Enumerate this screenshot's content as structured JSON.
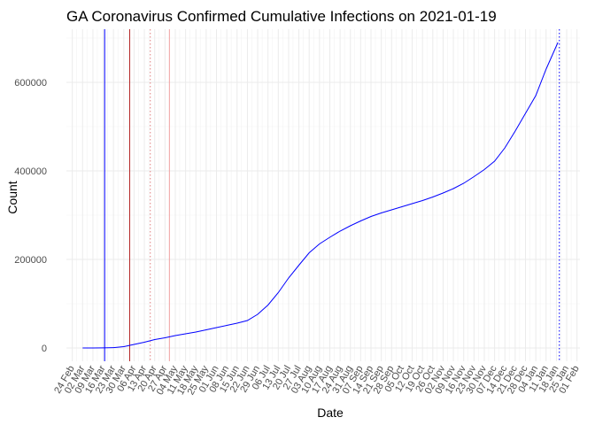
{
  "chart_data": {
    "type": "line",
    "title": "GA Coronavirus Confirmed Cumulative Infections on 2021-01-19",
    "xlabel": "Date",
    "ylabel": "Count",
    "xlim": [
      "2020-02-20",
      "2021-02-03"
    ],
    "ylim": [
      -30000,
      720000
    ],
    "grid": true,
    "y_ticks": [
      {
        "value": 0,
        "label": "0"
      },
      {
        "value": 200000,
        "label": "200000"
      },
      {
        "value": 400000,
        "label": "400000"
      },
      {
        "value": 600000,
        "label": "600000"
      }
    ],
    "x_ticks": [
      {
        "date": "2020-02-24",
        "label": "24 Feb"
      },
      {
        "date": "2020-03-02",
        "label": "02 Mar"
      },
      {
        "date": "2020-03-09",
        "label": "09 Mar"
      },
      {
        "date": "2020-03-16",
        "label": "16 Mar"
      },
      {
        "date": "2020-03-23",
        "label": "23 Mar"
      },
      {
        "date": "2020-03-30",
        "label": "30 Mar"
      },
      {
        "date": "2020-04-06",
        "label": "06 Apr"
      },
      {
        "date": "2020-04-13",
        "label": "13 Apr"
      },
      {
        "date": "2020-04-20",
        "label": "20 Apr"
      },
      {
        "date": "2020-04-27",
        "label": "27 Apr"
      },
      {
        "date": "2020-05-04",
        "label": "04 May"
      },
      {
        "date": "2020-05-11",
        "label": "11 May"
      },
      {
        "date": "2020-05-18",
        "label": "18 May"
      },
      {
        "date": "2020-05-25",
        "label": "25 May"
      },
      {
        "date": "2020-06-01",
        "label": "01 Jun"
      },
      {
        "date": "2020-06-08",
        "label": "08 Jun"
      },
      {
        "date": "2020-06-15",
        "label": "15 Jun"
      },
      {
        "date": "2020-06-22",
        "label": "22 Jun"
      },
      {
        "date": "2020-06-29",
        "label": "29 Jun"
      },
      {
        "date": "2020-07-06",
        "label": "06 Jul"
      },
      {
        "date": "2020-07-13",
        "label": "13 Jul"
      },
      {
        "date": "2020-07-20",
        "label": "20 Jul"
      },
      {
        "date": "2020-07-27",
        "label": "27 Jul"
      },
      {
        "date": "2020-08-03",
        "label": "03 Aug"
      },
      {
        "date": "2020-08-10",
        "label": "10 Aug"
      },
      {
        "date": "2020-08-17",
        "label": "17 Aug"
      },
      {
        "date": "2020-08-24",
        "label": "24 Aug"
      },
      {
        "date": "2020-08-31",
        "label": "31 Aug"
      },
      {
        "date": "2020-09-07",
        "label": "07 Sep"
      },
      {
        "date": "2020-09-14",
        "label": "14 Sep"
      },
      {
        "date": "2020-09-21",
        "label": "21 Sep"
      },
      {
        "date": "2020-09-28",
        "label": "28 Sep"
      },
      {
        "date": "2020-10-05",
        "label": "05 Oct"
      },
      {
        "date": "2020-10-12",
        "label": "12 Oct"
      },
      {
        "date": "2020-10-19",
        "label": "19 Oct"
      },
      {
        "date": "2020-10-26",
        "label": "26 Oct"
      },
      {
        "date": "2020-11-02",
        "label": "02 Nov"
      },
      {
        "date": "2020-11-09",
        "label": "09 Nov"
      },
      {
        "date": "2020-11-16",
        "label": "16 Nov"
      },
      {
        "date": "2020-11-23",
        "label": "23 Nov"
      },
      {
        "date": "2020-11-30",
        "label": "30 Nov"
      },
      {
        "date": "2020-12-07",
        "label": "07 Dec"
      },
      {
        "date": "2020-12-14",
        "label": "14 Dec"
      },
      {
        "date": "2020-12-21",
        "label": "21 Dec"
      },
      {
        "date": "2020-12-28",
        "label": "28 Dec"
      },
      {
        "date": "2021-01-04",
        "label": "04 Jan"
      },
      {
        "date": "2021-01-11",
        "label": "11 Jan"
      },
      {
        "date": "2021-01-18",
        "label": "18 Jan"
      },
      {
        "date": "2021-01-25",
        "label": "25 Jan"
      },
      {
        "date": "2021-02-01",
        "label": "01 Feb"
      }
    ],
    "series": [
      {
        "color": "#0000ff",
        "points": [
          {
            "x": "2020-03-02",
            "y": 0
          },
          {
            "x": "2020-03-09",
            "y": 50
          },
          {
            "x": "2020-03-16",
            "y": 120
          },
          {
            "x": "2020-03-23",
            "y": 800
          },
          {
            "x": "2020-03-30",
            "y": 3000
          },
          {
            "x": "2020-04-06",
            "y": 8000
          },
          {
            "x": "2020-04-13",
            "y": 13000
          },
          {
            "x": "2020-04-20",
            "y": 19000
          },
          {
            "x": "2020-04-27",
            "y": 23000
          },
          {
            "x": "2020-05-04",
            "y": 28000
          },
          {
            "x": "2020-05-11",
            "y": 32000
          },
          {
            "x": "2020-05-18",
            "y": 36000
          },
          {
            "x": "2020-05-25",
            "y": 41000
          },
          {
            "x": "2020-06-01",
            "y": 46000
          },
          {
            "x": "2020-06-08",
            "y": 51000
          },
          {
            "x": "2020-06-15",
            "y": 56000
          },
          {
            "x": "2020-06-22",
            "y": 62000
          },
          {
            "x": "2020-06-29",
            "y": 76000
          },
          {
            "x": "2020-07-06",
            "y": 97000
          },
          {
            "x": "2020-07-13",
            "y": 125000
          },
          {
            "x": "2020-07-20",
            "y": 158000
          },
          {
            "x": "2020-07-27",
            "y": 187000
          },
          {
            "x": "2020-08-03",
            "y": 215000
          },
          {
            "x": "2020-08-10",
            "y": 235000
          },
          {
            "x": "2020-08-17",
            "y": 250000
          },
          {
            "x": "2020-08-24",
            "y": 264000
          },
          {
            "x": "2020-08-31",
            "y": 276000
          },
          {
            "x": "2020-09-07",
            "y": 287000
          },
          {
            "x": "2020-09-14",
            "y": 297000
          },
          {
            "x": "2020-09-21",
            "y": 305000
          },
          {
            "x": "2020-09-28",
            "y": 312000
          },
          {
            "x": "2020-10-05",
            "y": 319000
          },
          {
            "x": "2020-10-12",
            "y": 326000
          },
          {
            "x": "2020-10-19",
            "y": 333000
          },
          {
            "x": "2020-10-26",
            "y": 341000
          },
          {
            "x": "2020-11-02",
            "y": 350000
          },
          {
            "x": "2020-11-09",
            "y": 360000
          },
          {
            "x": "2020-11-16",
            "y": 372000
          },
          {
            "x": "2020-11-23",
            "y": 387000
          },
          {
            "x": "2020-11-30",
            "y": 403000
          },
          {
            "x": "2020-12-07",
            "y": 422000
          },
          {
            "x": "2020-12-14",
            "y": 452000
          },
          {
            "x": "2020-12-21",
            "y": 490000
          },
          {
            "x": "2020-12-28",
            "y": 530000
          },
          {
            "x": "2021-01-04",
            "y": 570000
          },
          {
            "x": "2021-01-11",
            "y": 630000
          },
          {
            "x": "2021-01-19",
            "y": 690000
          }
        ]
      }
    ],
    "vertical_lines": [
      {
        "date": "2020-03-17",
        "color": "#0000ff",
        "style": "solid"
      },
      {
        "date": "2020-04-03",
        "color": "#b22222",
        "style": "solid"
      },
      {
        "date": "2020-04-17",
        "color": "#e08080",
        "style": "dotted"
      },
      {
        "date": "2020-04-30",
        "color": "#f0a0a0",
        "style": "solid"
      },
      {
        "date": "2021-01-20",
        "color": "#0000ff",
        "style": "dotted"
      }
    ]
  }
}
